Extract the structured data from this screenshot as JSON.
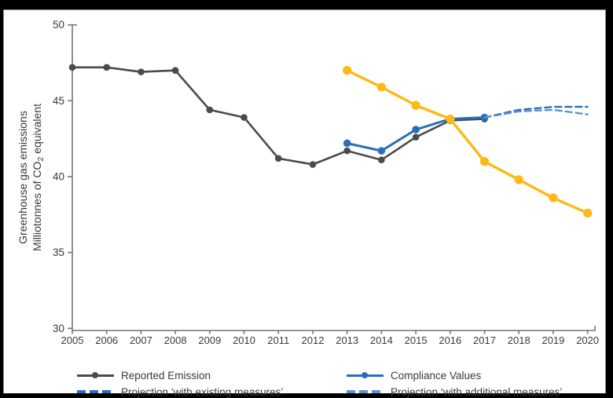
{
  "frame": {
    "background": "#000000",
    "panel_background": "#ffffff",
    "panel_border": "#8f8f8f"
  },
  "y_axis": {
    "title_line1": "Greenhouse gas emissions",
    "title_line2_prefix": "Milliotonnes of CO",
    "title_line2_sub": "2",
    "title_line2_suffix": " equivalent",
    "ticks": [
      50,
      45,
      40,
      35,
      30
    ],
    "min": 30,
    "max": 50
  },
  "x_axis": {
    "ticks": [
      2005,
      2006,
      2007,
      2008,
      2009,
      2010,
      2011,
      2012,
      2013,
      2014,
      2015,
      2016,
      2017,
      2018,
      2019,
      2020
    ]
  },
  "colors": {
    "reported": "#4b4b4b",
    "compliance": "#2a6db8",
    "yellow": "#fdb917",
    "proj_existing": "#2a6db8",
    "proj_additional": "#6192cc",
    "axis": "#757575",
    "text": "#3a3a3a"
  },
  "legend": {
    "items": [
      {
        "label": "Reported Emission",
        "series": "reported",
        "style": "solid"
      },
      {
        "label": "Compliance Values",
        "series": "compliance",
        "style": "solid"
      },
      {
        "label": "Projection ‘with existing measures’",
        "series": "proj_existing",
        "style": "dashed"
      },
      {
        "label": "Projection ‘with additional measures’",
        "series": "proj_additional",
        "style": "dashed"
      }
    ]
  },
  "chart_data": {
    "type": "line",
    "title": "",
    "xlabel": "",
    "ylabel": "Greenhouse gas emissions, Milliotonnes of CO2 equivalent",
    "ylim": [
      30,
      50
    ],
    "xlim": [
      2005,
      2020
    ],
    "grid": false,
    "legend_position": "bottom",
    "series": [
      {
        "id": "reported",
        "name": "Reported Emission",
        "style": "solid",
        "marker": "dot",
        "color": "#4b4b4b",
        "stroke_width": 2.6,
        "marker_radius": 4.3,
        "years": [
          2005,
          2006,
          2007,
          2008,
          2009,
          2010,
          2011,
          2012,
          2013,
          2014,
          2015,
          2016,
          2017
        ],
        "values": [
          47.2,
          47.2,
          46.9,
          47.0,
          44.4,
          43.9,
          41.2,
          40.8,
          41.7,
          41.1,
          42.6,
          43.7,
          43.8
        ]
      },
      {
        "id": "compliance",
        "name": "Compliance Values",
        "style": "solid",
        "marker": "dot",
        "color": "#2a6db8",
        "stroke_width": 3,
        "marker_radius": 4.8,
        "years": [
          2013,
          2014,
          2015,
          2016,
          2017
        ],
        "values": [
          42.2,
          41.7,
          43.1,
          43.8,
          43.9
        ]
      },
      {
        "id": "yellow",
        "name": "",
        "style": "solid",
        "marker": "dot",
        "color": "#fdb917",
        "stroke_width": 3.4,
        "marker_radius": 5.6,
        "years": [
          2013,
          2014,
          2015,
          2016,
          2017,
          2018,
          2019,
          2020
        ],
        "values": [
          47.0,
          45.9,
          44.7,
          43.8,
          41.0,
          39.8,
          38.6,
          37.6
        ]
      },
      {
        "id": "proj_existing",
        "name": "Projection ‘with existing measures’",
        "style": "dashed",
        "marker": "none",
        "color": "#2a6db8",
        "stroke_width": 2.4,
        "marker_radius": 0,
        "years": [
          2017,
          2018,
          2019,
          2020
        ],
        "values": [
          43.9,
          44.4,
          44.6,
          44.6
        ]
      },
      {
        "id": "proj_additional",
        "name": "Projection ‘with additional measures’",
        "style": "dashed",
        "marker": "none",
        "color": "#6192cc",
        "stroke_width": 2.4,
        "marker_radius": 0,
        "years": [
          2017,
          2018,
          2019,
          2020
        ],
        "values": [
          43.9,
          44.3,
          44.4,
          44.1
        ]
      }
    ]
  }
}
